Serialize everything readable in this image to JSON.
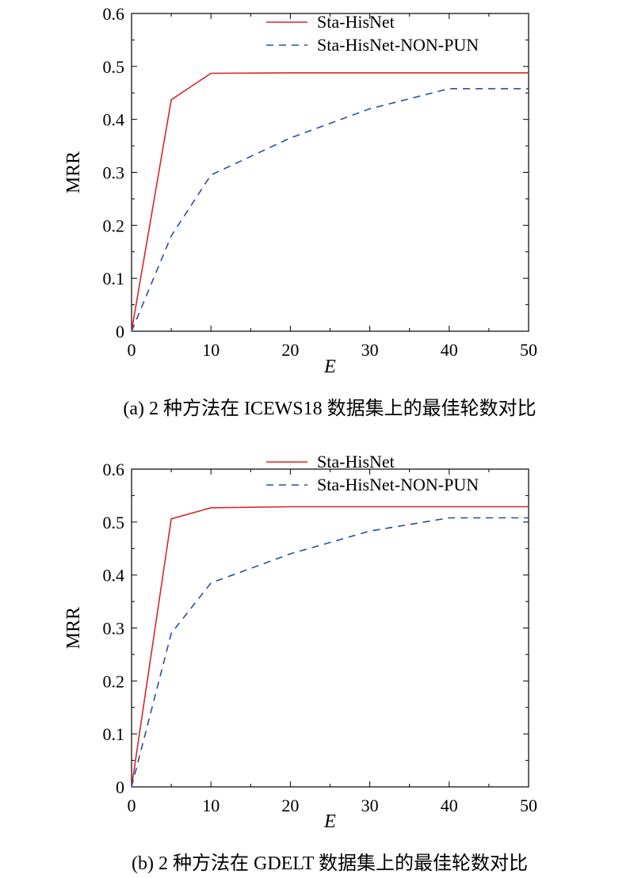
{
  "chart_data": [
    {
      "type": "line",
      "caption": "(a) 2 种方法在 ICEWS18 数据集上的最佳轮数对比",
      "xlabel": "E",
      "ylabel": "MRR",
      "xlim": [
        0,
        50
      ],
      "ylim": [
        0,
        0.6
      ],
      "xticks": [
        0,
        10,
        20,
        30,
        40,
        50
      ],
      "yticks": [
        0,
        0.1,
        0.2,
        0.3,
        0.4,
        0.5,
        0.6
      ],
      "legend_position": "top-right",
      "series": [
        {
          "name": "Sta-HisNet",
          "style": "solid",
          "color": "#d62728",
          "x": [
            0,
            5,
            10,
            20,
            30,
            40,
            50
          ],
          "y": [
            0,
            0.437,
            0.487,
            0.488,
            0.488,
            0.488,
            0.488
          ]
        },
        {
          "name": "Sta-HisNet-NON-PUN",
          "style": "dashed",
          "color": "#2b4ea0",
          "x": [
            0,
            5,
            10,
            20,
            30,
            40,
            50
          ],
          "y": [
            0,
            0.18,
            0.295,
            0.365,
            0.42,
            0.458,
            0.458
          ]
        }
      ]
    },
    {
      "type": "line",
      "caption": "(b) 2 种方法在 GDELT 数据集上的最佳轮数对比",
      "xlabel": "E",
      "ylabel": "MRR",
      "xlim": [
        0,
        50
      ],
      "ylim": [
        0,
        0.6
      ],
      "xticks": [
        0,
        10,
        20,
        30,
        40,
        50
      ],
      "yticks": [
        0,
        0.1,
        0.2,
        0.3,
        0.4,
        0.5,
        0.6
      ],
      "legend_position": "top-right",
      "series": [
        {
          "name": "Sta-HisNet",
          "style": "solid",
          "color": "#d62728",
          "x": [
            0,
            5,
            10,
            20,
            30,
            40,
            50
          ],
          "y": [
            0,
            0.506,
            0.527,
            0.529,
            0.529,
            0.529,
            0.529
          ]
        },
        {
          "name": "Sta-HisNet-NON-PUN",
          "style": "dashed",
          "color": "#2b4ea0",
          "x": [
            0,
            5,
            10,
            20,
            30,
            40,
            50
          ],
          "y": [
            0,
            0.29,
            0.385,
            0.44,
            0.483,
            0.508,
            0.508
          ]
        }
      ]
    }
  ]
}
